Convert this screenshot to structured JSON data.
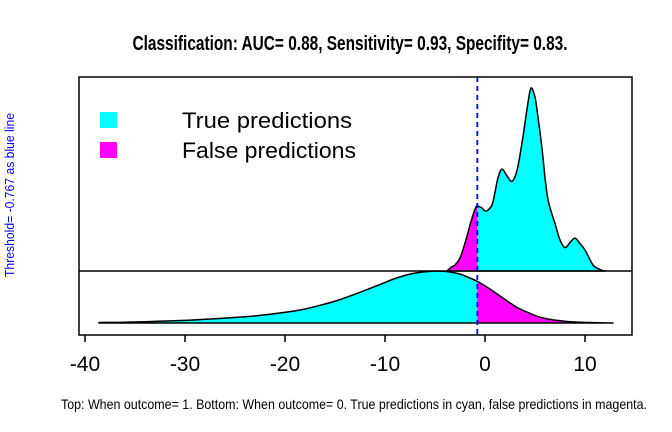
{
  "title": "Classification: AUC= 0.88, Sensitivity= 0.93, Specifity= 0.83.",
  "y_axis_label": "Threshold= -0.767 as blue line",
  "caption": "Top: When outcome= 1. Bottom: When outcome= 0. True predictions in cyan, false predictions in magenta.",
  "metrics": {
    "auc": 0.88,
    "sensitivity": 0.93,
    "specificity": 0.83,
    "threshold": -0.767
  },
  "legend": {
    "items": [
      {
        "label": "True predictions",
        "color": "#00FFFF"
      },
      {
        "label": "False predictions",
        "color": "#FF00FF"
      }
    ]
  },
  "colors": {
    "true_predictions": "#00FFFF",
    "false_predictions": "#FF00FF",
    "threshold_line": "#0000FF",
    "outline": "#000000"
  },
  "chart_data": {
    "type": "area",
    "subtype": "classification-density",
    "title": "Classification: AUC= 0.88, Sensitivity= 0.93, Specifity= 0.83.",
    "xlabel": "",
    "ylabel": "Threshold= -0.767 as blue line",
    "x_ticks": [
      -40,
      -30,
      -20,
      -10,
      0,
      10
    ],
    "xlim": [
      -40.6,
      14.7
    ],
    "grid": false,
    "legend_position": "top-left-inside",
    "threshold_x": -0.767,
    "threshold_line_color": "#0000FF",
    "panels": [
      {
        "name": "outcome_1",
        "position": "top",
        "description": "When outcome= 1",
        "true_color": "#00FFFF",
        "false_color": "#FF00FF",
        "false_side": "left",
        "points": [
          [
            -3.8,
            0.0
          ],
          [
            -3.4,
            0.02
          ],
          [
            -3.0,
            0.033
          ],
          [
            -2.5,
            0.071
          ],
          [
            -2.0,
            0.153
          ],
          [
            -1.5,
            0.251
          ],
          [
            -1.2,
            0.306
          ],
          [
            -0.9,
            0.35
          ],
          [
            -0.767,
            0.355
          ],
          [
            -0.3,
            0.344
          ],
          [
            0.0,
            0.328
          ],
          [
            0.3,
            0.333
          ],
          [
            0.7,
            0.361
          ],
          [
            1.0,
            0.43
          ],
          [
            1.3,
            0.51
          ],
          [
            1.7,
            0.557
          ],
          [
            2.2,
            0.52
          ],
          [
            2.7,
            0.49
          ],
          [
            3.2,
            0.55
          ],
          [
            3.7,
            0.7
          ],
          [
            4.0,
            0.81
          ],
          [
            4.3,
            0.92
          ],
          [
            4.6,
            1.0
          ],
          [
            5.0,
            0.95
          ],
          [
            5.3,
            0.84
          ],
          [
            5.7,
            0.67
          ],
          [
            6.0,
            0.51
          ],
          [
            6.3,
            0.39
          ],
          [
            6.7,
            0.31
          ],
          [
            7.0,
            0.26
          ],
          [
            7.5,
            0.17
          ],
          [
            8.0,
            0.128
          ],
          [
            8.5,
            0.155
          ],
          [
            9.0,
            0.18
          ],
          [
            9.5,
            0.15
          ],
          [
            10.0,
            0.115
          ],
          [
            10.8,
            0.033
          ],
          [
            11.5,
            0.008
          ],
          [
            12.0,
            0.0
          ]
        ]
      },
      {
        "name": "outcome_0",
        "position": "bottom",
        "description": "When outcome= 0",
        "true_color": "#00FFFF",
        "false_color": "#FF00FF",
        "false_side": "right",
        "points": [
          [
            -38.6,
            0.01
          ],
          [
            -36.0,
            0.015
          ],
          [
            -33.0,
            0.03
          ],
          [
            -30.0,
            0.05
          ],
          [
            -27.0,
            0.08
          ],
          [
            -24.0,
            0.12
          ],
          [
            -21.0,
            0.18
          ],
          [
            -18.5,
            0.25
          ],
          [
            -16.5,
            0.34
          ],
          [
            -14.5,
            0.45
          ],
          [
            -12.5,
            0.59
          ],
          [
            -10.5,
            0.74
          ],
          [
            -9.0,
            0.855
          ],
          [
            -7.5,
            0.94
          ],
          [
            -6.0,
            0.985
          ],
          [
            -4.8,
            1.0
          ],
          [
            -3.5,
            0.98
          ],
          [
            -2.5,
            0.94
          ],
          [
            -1.5,
            0.865
          ],
          [
            -0.767,
            0.8
          ],
          [
            0.2,
            0.69
          ],
          [
            1.2,
            0.56
          ],
          [
            2.2,
            0.425
          ],
          [
            3.2,
            0.3
          ],
          [
            4.2,
            0.21
          ],
          [
            5.2,
            0.13
          ],
          [
            6.2,
            0.08
          ],
          [
            7.2,
            0.05
          ],
          [
            8.5,
            0.025
          ],
          [
            10.0,
            0.012
          ],
          [
            11.5,
            0.005
          ],
          [
            12.8,
            0.0
          ]
        ]
      }
    ]
  }
}
